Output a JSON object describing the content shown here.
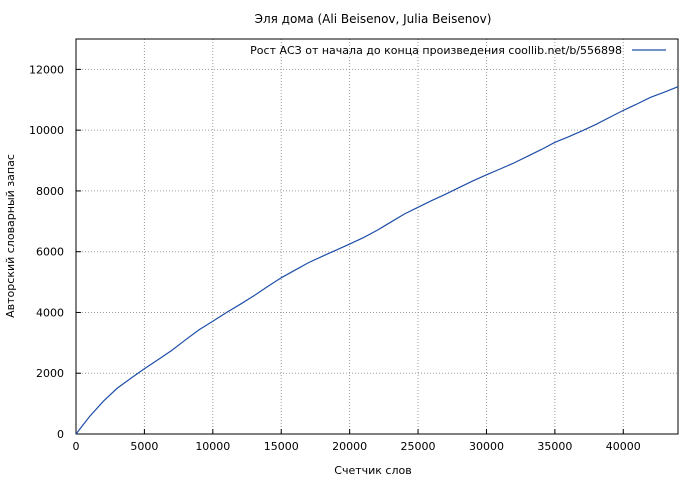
{
  "chart_data": {
    "type": "line",
    "title": "Эля дома (Ali Beisenov, Julia Beisenov)",
    "xlabel": "Счетчик слов",
    "ylabel": "Авторский словарный запас",
    "xlim": [
      0,
      44000
    ],
    "ylim": [
      0,
      13000
    ],
    "x_ticks": [
      0,
      5000,
      10000,
      15000,
      20000,
      25000,
      30000,
      35000,
      40000
    ],
    "y_ticks": [
      0,
      2000,
      4000,
      6000,
      8000,
      10000,
      12000
    ],
    "x_tick_labels": [
      "0",
      "5000",
      "10000",
      "15000",
      "20000",
      "25000",
      "30000",
      "35000",
      "40000"
    ],
    "y_tick_labels": [
      "0",
      "2000",
      "4000",
      "6000",
      "8000",
      "10000",
      "12000"
    ],
    "grid": true,
    "legend_position": "top-right",
    "series": [
      {
        "name": "Рост АСЗ от начала до конца произведения  coollib.net/b/556898",
        "color": "#1f4fa8",
        "x": [
          0,
          500,
          1000,
          2000,
          3000,
          4000,
          5000,
          6000,
          7000,
          8000,
          9000,
          10000,
          11000,
          12000,
          13000,
          14000,
          15000,
          16000,
          17000,
          18000,
          19000,
          20000,
          21000,
          22000,
          23000,
          24000,
          25000,
          26000,
          27000,
          28000,
          29000,
          30000,
          31000,
          32000,
          33000,
          34000,
          35000,
          36000,
          37000,
          38000,
          39000,
          40000,
          41000,
          42000,
          43000,
          44000
        ],
        "y": [
          0,
          290,
          580,
          1080,
          1500,
          1830,
          2150,
          2450,
          2750,
          3100,
          3430,
          3710,
          4000,
          4270,
          4550,
          4850,
          5140,
          5390,
          5640,
          5850,
          6050,
          6250,
          6460,
          6700,
          6970,
          7240,
          7460,
          7680,
          7890,
          8110,
          8330,
          8530,
          8720,
          8920,
          9140,
          9360,
          9600,
          9780,
          9980,
          10190,
          10420,
          10650,
          10860,
          11080,
          11250,
          11430
        ]
      }
    ]
  }
}
